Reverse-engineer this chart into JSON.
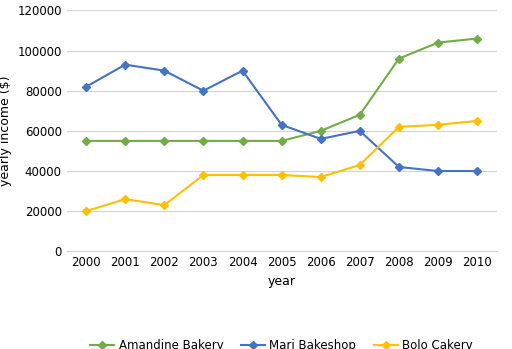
{
  "years": [
    2000,
    2001,
    2002,
    2003,
    2004,
    2005,
    2006,
    2007,
    2008,
    2009,
    2010
  ],
  "amandine": [
    55000,
    55000,
    55000,
    55000,
    55000,
    55000,
    60000,
    68000,
    96000,
    104000,
    106000
  ],
  "mari": [
    82000,
    93000,
    90000,
    80000,
    90000,
    63000,
    56000,
    60000,
    42000,
    40000,
    40000
  ],
  "bolo": [
    20000,
    26000,
    23000,
    38000,
    38000,
    38000,
    37000,
    43000,
    62000,
    63000,
    65000
  ],
  "amandine_color": "#70AD47",
  "mari_color": "#4472C4",
  "bolo_color": "#FFC000",
  "xlabel": "year",
  "ylabel": "yearly income ($)",
  "ylim_min": 0,
  "ylim_max": 120000,
  "ytick_step": 20000,
  "legend_labels": [
    "Amandine Bakery",
    "Mari Bakeshop",
    "Bolo Cakery"
  ],
  "marker": "D",
  "marker_size": 4,
  "linewidth": 1.5,
  "tick_fontsize": 8.5,
  "label_fontsize": 9,
  "legend_fontsize": 8.5
}
